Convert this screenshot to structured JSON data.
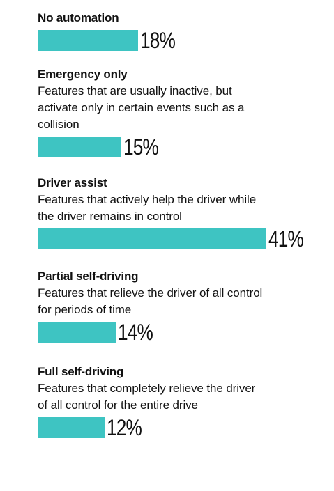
{
  "chart_data": {
    "type": "bar",
    "orientation": "horizontal",
    "bar_color": "#3ec4c2",
    "unit": "%",
    "categories": [
      {
        "title": "No automation",
        "description": "",
        "value": 18,
        "label": "18%"
      },
      {
        "title": "Emergency only",
        "description": "Features that are usually inactive, but\nactivate only in certain events such as a\ncollision",
        "value": 15,
        "label": "15%"
      },
      {
        "title": "Driver assist",
        "description": "Features that actively help the driver while\nthe driver remains in control",
        "value": 41,
        "label": "41%"
      },
      {
        "title": "Partial self-driving",
        "description": "Features that relieve the driver of all control\nfor periods of time",
        "value": 14,
        "label": "14%"
      },
      {
        "title": "Full self-driving",
        "description": "Features that completely relieve the driver\nof all control for the entire drive",
        "value": 12,
        "label": "12%"
      }
    ]
  }
}
